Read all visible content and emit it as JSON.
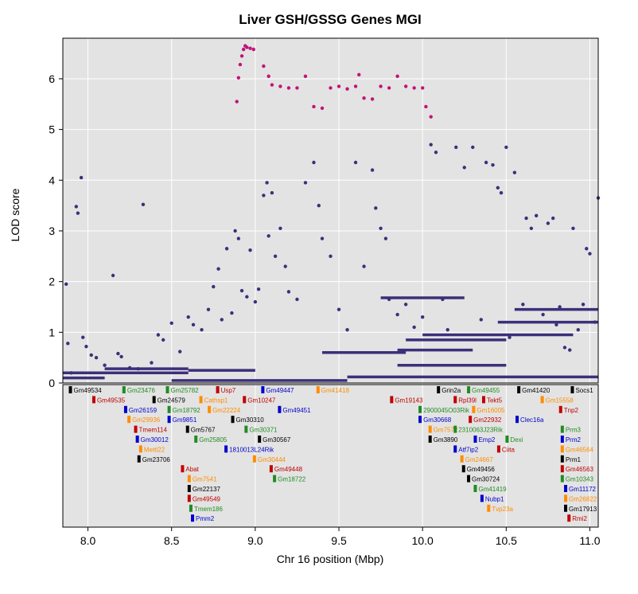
{
  "chart_data": {
    "type": "scatter",
    "title": "Liver GSH/GSSG Genes MGI",
    "xlabel": "Chr 16 position (Mbp)",
    "ylabel": "LOD score",
    "xlim": [
      7.85,
      11.05
    ],
    "ylim": [
      0,
      6.8
    ],
    "x_ticks": [
      "8.0",
      "8.5",
      "9.0",
      "9.5",
      "10.0",
      "10.5",
      "11.0"
    ],
    "y_ticks": [
      "0",
      "1",
      "2",
      "3",
      "4",
      "5",
      "6"
    ],
    "grid": true,
    "colors": {
      "panel": "#e3e3e3",
      "grid": "#ffffff",
      "points": "#3d2f7a",
      "highlight": "#c1137a"
    },
    "series": [
      {
        "color": "#3d2f7a",
        "points": [
          [
            7.87,
            1.95
          ],
          [
            7.88,
            0.78
          ],
          [
            7.9,
            0.2
          ],
          [
            7.93,
            3.48
          ],
          [
            7.94,
            3.35
          ],
          [
            7.96,
            4.05
          ],
          [
            7.97,
            0.9
          ],
          [
            7.99,
            0.72
          ],
          [
            8.02,
            0.55
          ],
          [
            8.05,
            0.5
          ],
          [
            8.1,
            0.35
          ],
          [
            8.15,
            2.12
          ],
          [
            8.18,
            0.58
          ],
          [
            8.2,
            0.52
          ],
          [
            8.25,
            0.3
          ],
          [
            8.3,
            0.28
          ],
          [
            8.33,
            3.52
          ],
          [
            8.38,
            0.4
          ],
          [
            8.42,
            0.95
          ],
          [
            8.45,
            0.85
          ],
          [
            8.5,
            1.18
          ],
          [
            8.55,
            0.62
          ],
          [
            8.6,
            1.3
          ],
          [
            8.63,
            1.15
          ],
          [
            8.68,
            1.05
          ],
          [
            8.72,
            1.45
          ],
          [
            8.75,
            1.9
          ],
          [
            8.78,
            2.25
          ],
          [
            8.8,
            1.25
          ],
          [
            8.83,
            2.65
          ],
          [
            8.86,
            1.38
          ],
          [
            8.88,
            3.0
          ],
          [
            8.9,
            2.85
          ],
          [
            8.92,
            1.82
          ],
          [
            8.95,
            1.7
          ],
          [
            8.97,
            2.62
          ],
          [
            9.0,
            1.6
          ],
          [
            9.02,
            1.85
          ],
          [
            9.05,
            3.7
          ],
          [
            9.07,
            3.95
          ],
          [
            9.08,
            2.9
          ],
          [
            9.1,
            3.75
          ],
          [
            9.12,
            2.5
          ],
          [
            9.15,
            3.05
          ],
          [
            9.18,
            2.3
          ],
          [
            9.2,
            1.8
          ],
          [
            9.25,
            1.65
          ],
          [
            9.3,
            3.95
          ],
          [
            9.35,
            4.35
          ],
          [
            9.38,
            3.5
          ],
          [
            9.4,
            2.85
          ],
          [
            9.45,
            2.5
          ],
          [
            9.5,
            1.45
          ],
          [
            9.55,
            1.05
          ],
          [
            9.6,
            4.35
          ],
          [
            9.65,
            2.3
          ],
          [
            9.7,
            4.2
          ],
          [
            9.72,
            3.45
          ],
          [
            9.75,
            3.05
          ],
          [
            9.78,
            2.85
          ],
          [
            9.8,
            1.65
          ],
          [
            9.85,
            1.35
          ],
          [
            9.9,
            1.55
          ],
          [
            9.95,
            1.1
          ],
          [
            10.0,
            1.3
          ],
          [
            10.05,
            4.7
          ],
          [
            10.08,
            4.55
          ],
          [
            10.12,
            1.65
          ],
          [
            10.15,
            1.05
          ],
          [
            10.2,
            4.65
          ],
          [
            10.25,
            4.25
          ],
          [
            10.3,
            4.65
          ],
          [
            10.35,
            1.25
          ],
          [
            10.38,
            4.35
          ],
          [
            10.42,
            4.3
          ],
          [
            10.45,
            3.85
          ],
          [
            10.47,
            3.75
          ],
          [
            10.5,
            4.65
          ],
          [
            10.52,
            0.9
          ],
          [
            10.55,
            4.15
          ],
          [
            10.6,
            1.55
          ],
          [
            10.62,
            3.25
          ],
          [
            10.65,
            3.05
          ],
          [
            10.68,
            3.3
          ],
          [
            10.72,
            1.35
          ],
          [
            10.75,
            3.15
          ],
          [
            10.78,
            3.25
          ],
          [
            10.8,
            1.15
          ],
          [
            10.82,
            1.5
          ],
          [
            10.85,
            0.7
          ],
          [
            10.88,
            0.65
          ],
          [
            10.9,
            3.05
          ],
          [
            10.93,
            1.05
          ],
          [
            10.96,
            1.55
          ],
          [
            10.98,
            2.65
          ],
          [
            11.0,
            2.55
          ],
          [
            11.03,
            1.2
          ],
          [
            11.05,
            3.65
          ]
        ]
      },
      {
        "color": "#c1137a",
        "points": [
          [
            8.92,
            6.45
          ],
          [
            8.93,
            6.58
          ],
          [
            8.94,
            6.65
          ],
          [
            8.95,
            6.62
          ],
          [
            8.97,
            6.6
          ],
          [
            8.99,
            6.58
          ],
          [
            8.91,
            6.28
          ],
          [
            8.9,
            6.02
          ],
          [
            8.89,
            5.55
          ],
          [
            9.05,
            6.25
          ],
          [
            9.08,
            6.05
          ],
          [
            9.1,
            5.88
          ],
          [
            9.15,
            5.85
          ],
          [
            9.2,
            5.82
          ],
          [
            9.25,
            5.82
          ],
          [
            9.3,
            6.05
          ],
          [
            9.35,
            5.45
          ],
          [
            9.4,
            5.42
          ],
          [
            9.45,
            5.82
          ],
          [
            9.5,
            5.85
          ],
          [
            9.55,
            5.8
          ],
          [
            9.6,
            5.85
          ],
          [
            9.62,
            6.08
          ],
          [
            9.65,
            5.62
          ],
          [
            9.7,
            5.6
          ],
          [
            9.75,
            5.85
          ],
          [
            9.8,
            5.82
          ],
          [
            9.85,
            6.05
          ],
          [
            9.9,
            5.85
          ],
          [
            9.95,
            5.82
          ],
          [
            10.0,
            5.82
          ],
          [
            10.02,
            5.45
          ],
          [
            10.05,
            5.25
          ]
        ]
      }
    ],
    "genes": [
      {
        "name": "Gm49534",
        "pos": 7.9,
        "row": 0,
        "color": "#000000"
      },
      {
        "name": "Gm23476",
        "pos": 8.22,
        "row": 0,
        "color": "#228b22"
      },
      {
        "name": "Gm25782",
        "pos": 8.48,
        "row": 0,
        "color": "#228b22"
      },
      {
        "name": "Usp7",
        "pos": 8.78,
        "row": 0,
        "color": "#c00000"
      },
      {
        "name": "Gm49447",
        "pos": 9.05,
        "row": 0,
        "color": "#0000cc"
      },
      {
        "name": "Gm41418",
        "pos": 9.38,
        "row": 0,
        "color": "#ff8c00"
      },
      {
        "name": "Grin2a",
        "pos": 10.1,
        "row": 0,
        "color": "#000000"
      },
      {
        "name": "Gm49455",
        "pos": 10.28,
        "row": 0,
        "color": "#228b22"
      },
      {
        "name": "Gm41420",
        "pos": 10.58,
        "row": 0,
        "color": "#000000"
      },
      {
        "name": "Socs1",
        "pos": 10.9,
        "row": 0,
        "color": "#000000"
      },
      {
        "name": "Gm49535",
        "pos": 8.04,
        "row": 1,
        "color": "#c00000"
      },
      {
        "name": "Gm24579",
        "pos": 8.4,
        "row": 1,
        "color": "#000000"
      },
      {
        "name": "Cathsp1",
        "pos": 8.68,
        "row": 1,
        "color": "#ff8c00"
      },
      {
        "name": "Gm10247",
        "pos": 8.94,
        "row": 1,
        "color": "#c00000"
      },
      {
        "name": "Gm19143",
        "pos": 9.82,
        "row": 1,
        "color": "#c00000"
      },
      {
        "name": "Rpl39l",
        "pos": 10.2,
        "row": 1,
        "color": "#c00000"
      },
      {
        "name": "Tekt5",
        "pos": 10.37,
        "row": 1,
        "color": "#c00000"
      },
      {
        "name": "Gm15558",
        "pos": 10.72,
        "row": 1,
        "color": "#ff8c00"
      },
      {
        "name": "Gm26159",
        "pos": 8.23,
        "row": 2,
        "color": "#0000cc"
      },
      {
        "name": "Gm18792",
        "pos": 8.49,
        "row": 2,
        "color": "#228b22"
      },
      {
        "name": "Gm22224",
        "pos": 8.73,
        "row": 2,
        "color": "#ff8c00"
      },
      {
        "name": "Gm49451",
        "pos": 9.15,
        "row": 2,
        "color": "#0000cc"
      },
      {
        "name": "2900045O03Rik",
        "pos": 9.99,
        "row": 2,
        "color": "#228b22"
      },
      {
        "name": "Gm16005",
        "pos": 10.31,
        "row": 2,
        "color": "#ff8c00"
      },
      {
        "name": "Tnp2",
        "pos": 10.83,
        "row": 2,
        "color": "#c00000"
      },
      {
        "name": "Gm29936",
        "pos": 8.25,
        "row": 3,
        "color": "#ff8c00"
      },
      {
        "name": "Gm9851",
        "pos": 8.49,
        "row": 3,
        "color": "#0000cc"
      },
      {
        "name": "Gm30310",
        "pos": 8.87,
        "row": 3,
        "color": "#000000"
      },
      {
        "name": "Gm30668",
        "pos": 9.99,
        "row": 3,
        "color": "#0000cc"
      },
      {
        "name": "Gm22932",
        "pos": 10.29,
        "row": 3,
        "color": "#c00000"
      },
      {
        "name": "Clec16a",
        "pos": 10.57,
        "row": 3,
        "color": "#0000cc"
      },
      {
        "name": "Tmem114",
        "pos": 8.29,
        "row": 4,
        "color": "#c00000"
      },
      {
        "name": "Gm5767",
        "pos": 8.6,
        "row": 4,
        "color": "#000000"
      },
      {
        "name": "Gm30371",
        "pos": 8.95,
        "row": 4,
        "color": "#228b22"
      },
      {
        "name": "Gm7572",
        "pos": 10.05,
        "row": 4,
        "color": "#ff8c00"
      },
      {
        "name": "2310063J23Rik",
        "pos": 10.2,
        "row": 4,
        "color": "#228b22"
      },
      {
        "name": "Prm3",
        "pos": 10.84,
        "row": 4,
        "color": "#228b22"
      },
      {
        "name": "Gm30012",
        "pos": 8.3,
        "row": 5,
        "color": "#0000cc"
      },
      {
        "name": "Gm25805",
        "pos": 8.65,
        "row": 5,
        "color": "#228b22"
      },
      {
        "name": "Gm30567",
        "pos": 9.03,
        "row": 5,
        "color": "#000000"
      },
      {
        "name": "Gm3890",
        "pos": 10.05,
        "row": 5,
        "color": "#000000"
      },
      {
        "name": "Emp2",
        "pos": 10.32,
        "row": 5,
        "color": "#0000cc"
      },
      {
        "name": "Dexi",
        "pos": 10.51,
        "row": 5,
        "color": "#228b22"
      },
      {
        "name": "Prm2",
        "pos": 10.84,
        "row": 5,
        "color": "#0000cc"
      },
      {
        "name": "Mettl22",
        "pos": 8.32,
        "row": 6,
        "color": "#ff8c00"
      },
      {
        "name": "1810013L24Rik",
        "pos": 8.83,
        "row": 6,
        "color": "#0000cc"
      },
      {
        "name": "Atf7ip2",
        "pos": 10.2,
        "row": 6,
        "color": "#0000cc"
      },
      {
        "name": "Ciita",
        "pos": 10.46,
        "row": 6,
        "color": "#c00000"
      },
      {
        "name": "Gm46564",
        "pos": 10.84,
        "row": 6,
        "color": "#ff8c00"
      },
      {
        "name": "Gm23706",
        "pos": 8.31,
        "row": 7,
        "color": "#000000"
      },
      {
        "name": "Gm30444",
        "pos": 9.0,
        "row": 7,
        "color": "#ff8c00"
      },
      {
        "name": "Gm24667",
        "pos": 10.24,
        "row": 7,
        "color": "#ff8c00"
      },
      {
        "name": "Prm1",
        "pos": 10.84,
        "row": 7,
        "color": "#000000"
      },
      {
        "name": "Abat",
        "pos": 8.57,
        "row": 8,
        "color": "#c00000"
      },
      {
        "name": "Gm49448",
        "pos": 9.1,
        "row": 8,
        "color": "#c00000"
      },
      {
        "name": "Gm49456",
        "pos": 10.25,
        "row": 8,
        "color": "#000000"
      },
      {
        "name": "Gm46563",
        "pos": 10.84,
        "row": 8,
        "color": "#c00000"
      },
      {
        "name": "Gm7541",
        "pos": 8.61,
        "row": 9,
        "color": "#ff8c00"
      },
      {
        "name": "Gm18722",
        "pos": 9.12,
        "row": 9,
        "color": "#228b22"
      },
      {
        "name": "Gm30724",
        "pos": 10.28,
        "row": 9,
        "color": "#000000"
      },
      {
        "name": "Gm10343",
        "pos": 10.84,
        "row": 9,
        "color": "#228b22"
      },
      {
        "name": "Gm22137",
        "pos": 8.61,
        "row": 10,
        "color": "#000000"
      },
      {
        "name": "Gm41419",
        "pos": 10.32,
        "row": 10,
        "color": "#228b22"
      },
      {
        "name": "Gm11172",
        "pos": 10.86,
        "row": 10,
        "color": "#0000cc"
      },
      {
        "name": "Gm49549",
        "pos": 8.61,
        "row": 11,
        "color": "#c00000"
      },
      {
        "name": "Nubp1",
        "pos": 10.36,
        "row": 11,
        "color": "#0000cc"
      },
      {
        "name": "Gm26822",
        "pos": 10.86,
        "row": 11,
        "color": "#ff8c00"
      },
      {
        "name": "Tmem186",
        "pos": 8.62,
        "row": 12,
        "color": "#228b22"
      },
      {
        "name": "Tvp23a",
        "pos": 10.4,
        "row": 12,
        "color": "#ff8c00"
      },
      {
        "name": "Gm17913",
        "pos": 10.86,
        "row": 12,
        "color": "#000000"
      },
      {
        "name": "Pmm2",
        "pos": 8.63,
        "row": 13,
        "color": "#0000cc"
      },
      {
        "name": "Rmi2",
        "pos": 10.88,
        "row": 13,
        "color": "#c00000"
      }
    ]
  }
}
